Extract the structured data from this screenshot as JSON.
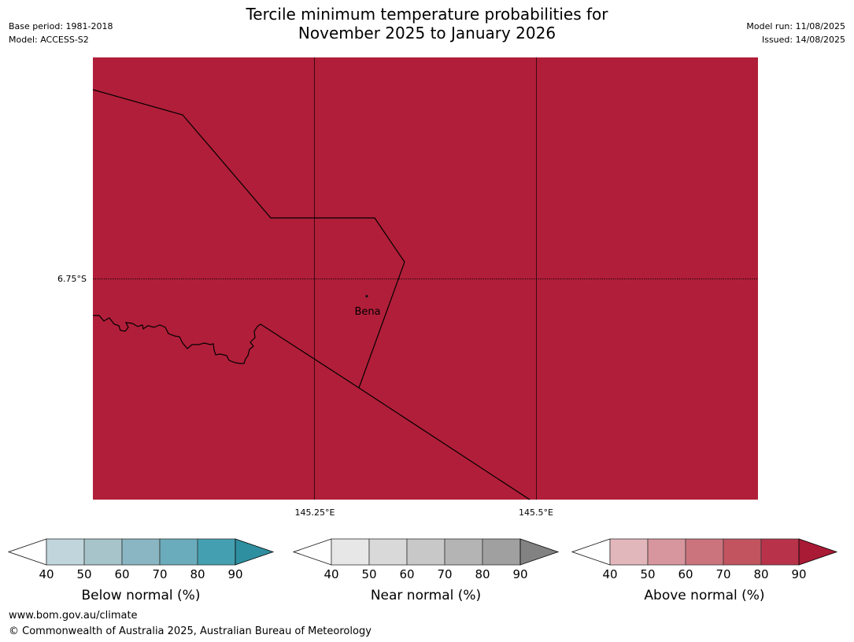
{
  "header": {
    "title_line1": "Tercile minimum temperature probabilities for",
    "title_line2": "November 2025 to January 2026",
    "base_period": "Base period: 1981-2018",
    "model": "Model: ACCESS-S2",
    "model_run": "Model run: 11/08/2025",
    "issued": "Issued: 14/08/2025"
  },
  "map": {
    "fill_color": "#b11e39",
    "longitude_labels": [
      "145.25°E",
      "145.5°E"
    ],
    "latitude_labels": [
      "6.75°S"
    ],
    "town": {
      "name": "Bena"
    }
  },
  "legends": [
    {
      "label": "Below normal (%)",
      "ticks": [
        "40",
        "50",
        "60",
        "70",
        "80",
        "90"
      ],
      "colors": [
        "#c0d6dc",
        "#a6c4ca",
        "#89b6c2",
        "#6aacbb",
        "#44a0b0"
      ],
      "extend_color": "#2e8fa0"
    },
    {
      "label": "Near normal (%)",
      "ticks": [
        "40",
        "50",
        "60",
        "70",
        "80",
        "90"
      ],
      "colors": [
        "#e7e7e7",
        "#d9d9d9",
        "#c8c8c8",
        "#b4b4b4",
        "#a0a0a0"
      ],
      "extend_color": "#828282"
    },
    {
      "label": "Above normal (%)",
      "ticks": [
        "40",
        "50",
        "60",
        "70",
        "80",
        "90"
      ],
      "colors": [
        "#e2b7bc",
        "#d7969e",
        "#cb747e",
        "#c2545f",
        "#b8334a"
      ],
      "extend_color": "#a91a35"
    }
  ],
  "footer": {
    "website": "www.bom.gov.au/climate",
    "copyright": "© Commonwealth of Australia 2025, Australian Bureau of Meteorology"
  }
}
